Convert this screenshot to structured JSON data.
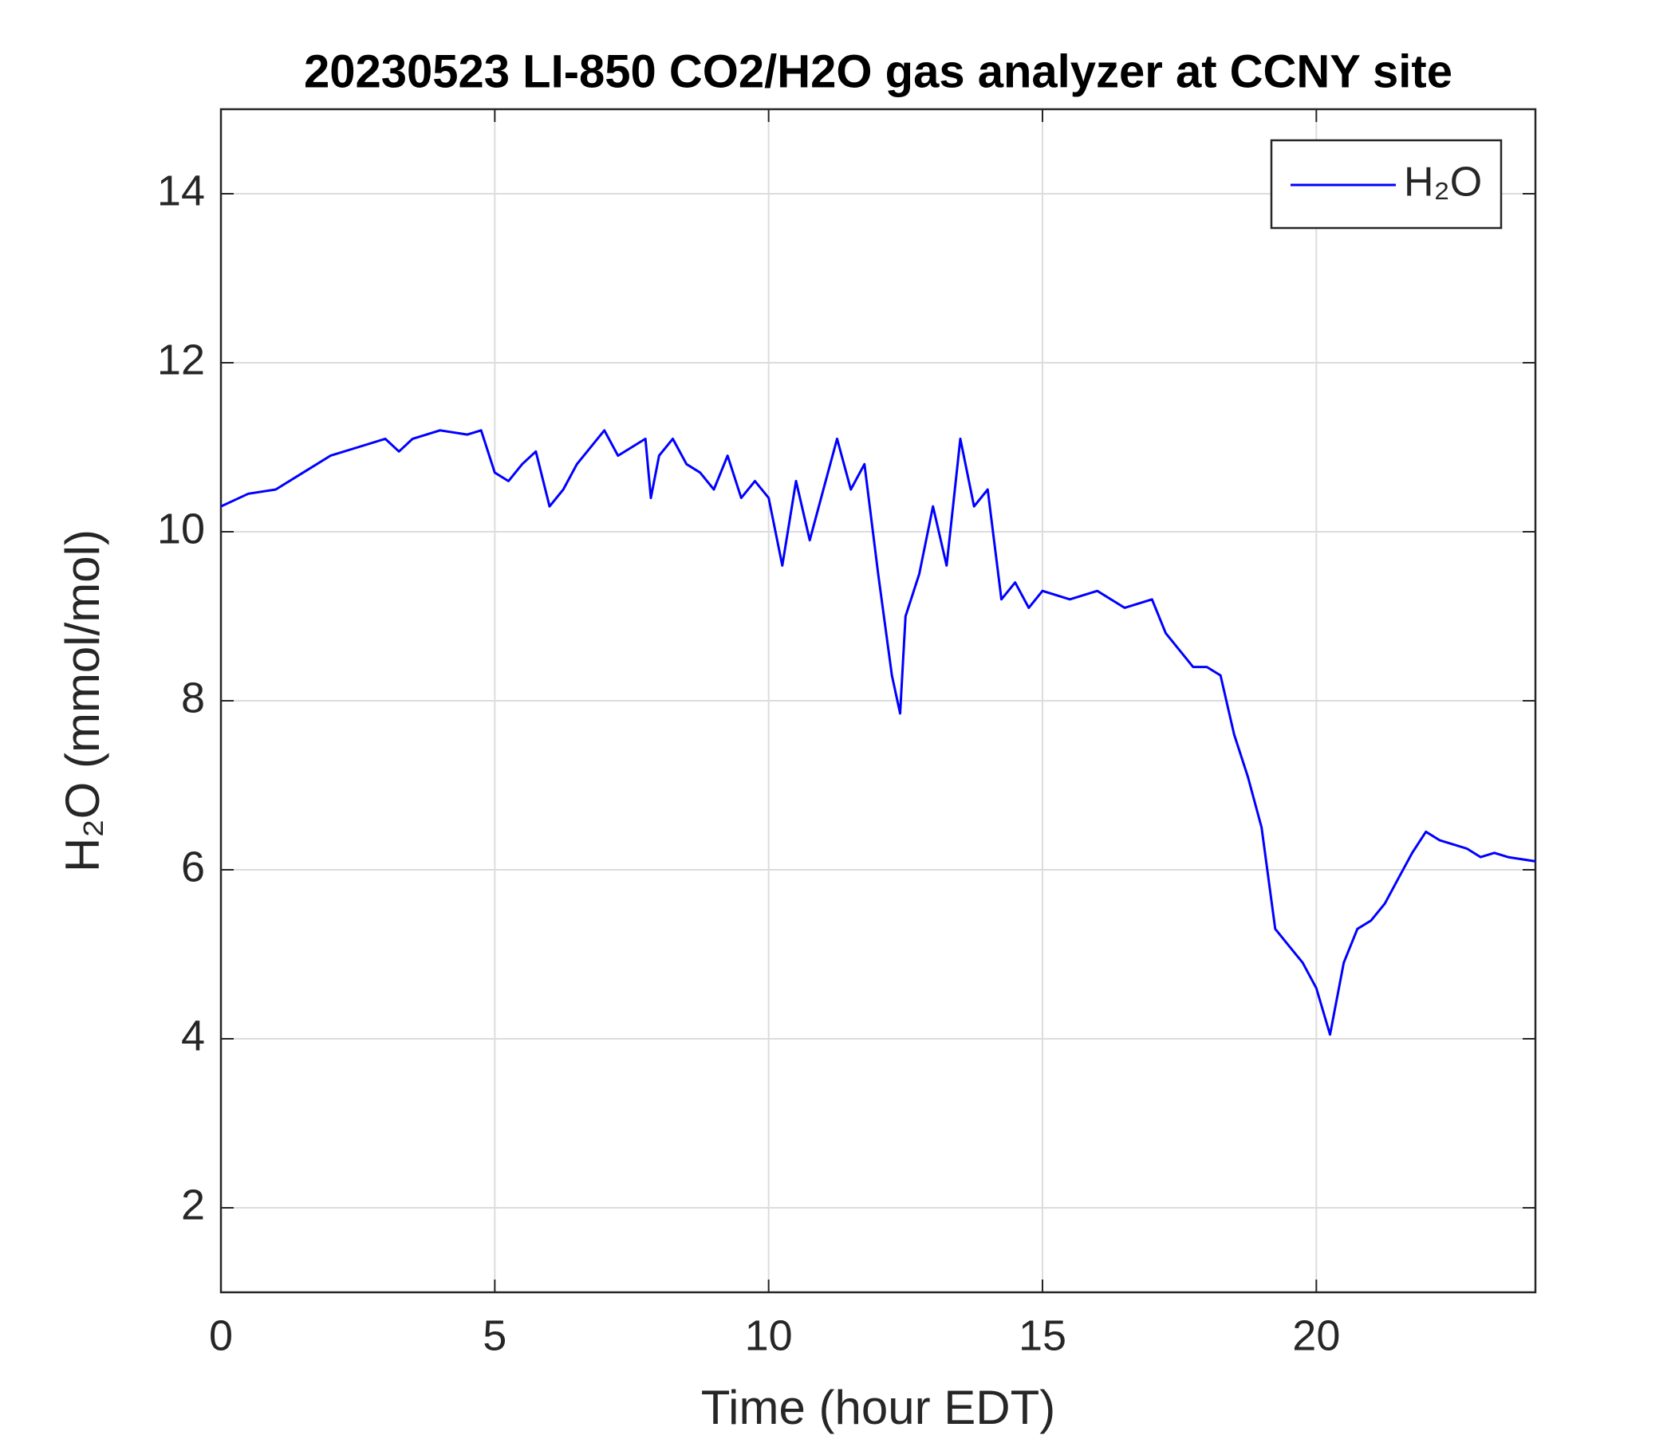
{
  "chart_data": {
    "type": "line",
    "title": "20230523 LI-850 CO2/H2O gas analyzer at CCNY site",
    "x_label": "Time (hour EDT)",
    "y_label": "H₂O (mmol/mol)",
    "x": [
      0,
      0.5,
      1,
      1.5,
      2,
      2.5,
      3,
      3.25,
      3.5,
      4,
      4.5,
      4.75,
      5,
      5.25,
      5.5,
      5.75,
      6,
      6.25,
      6.5,
      7,
      7.25,
      7.5,
      7.75,
      7.85,
      8,
      8.25,
      8.5,
      8.75,
      9,
      9.25,
      9.5,
      9.75,
      10,
      10.25,
      10.5,
      10.75,
      11,
      11.25,
      11.5,
      11.75,
      12,
      12.25,
      12.4,
      12.5,
      12.75,
      13,
      13.25,
      13.5,
      13.75,
      14,
      14.25,
      14.5,
      14.75,
      15,
      15.5,
      16,
      16.5,
      17,
      17.25,
      17.5,
      17.75,
      18,
      18.25,
      18.5,
      18.75,
      19,
      19.25,
      19.5,
      19.75,
      20,
      20.25,
      20.5,
      20.75,
      21,
      21.25,
      21.5,
      21.75,
      22,
      22.25,
      22.5,
      22.75,
      23,
      23.25,
      23.5,
      24
    ],
    "series": [
      {
        "name": "H₂O",
        "color": "#0000ff",
        "values": [
          10.3,
          10.45,
          10.5,
          10.7,
          10.9,
          11.0,
          11.1,
          10.95,
          11.1,
          11.2,
          11.15,
          11.2,
          10.7,
          10.6,
          10.8,
          10.95,
          10.3,
          10.5,
          10.8,
          11.2,
          10.9,
          11.0,
          11.1,
          10.4,
          10.9,
          11.1,
          10.8,
          10.7,
          10.5,
          10.9,
          10.4,
          10.6,
          10.4,
          9.6,
          10.6,
          9.9,
          10.5,
          11.1,
          10.5,
          10.8,
          9.5,
          8.3,
          7.85,
          9.0,
          9.5,
          10.3,
          9.6,
          11.1,
          10.3,
          10.5,
          9.2,
          9.4,
          9.1,
          9.3,
          9.2,
          9.3,
          9.1,
          9.2,
          8.8,
          8.6,
          8.4,
          8.4,
          8.3,
          7.6,
          7.1,
          6.5,
          5.3,
          5.1,
          4.9,
          4.6,
          4.05,
          4.9,
          5.3,
          5.4,
          5.6,
          5.9,
          6.2,
          6.45,
          6.35,
          6.3,
          6.25,
          6.15,
          6.2,
          6.15,
          6.1
        ]
      }
    ],
    "xlim": [
      0,
      24
    ],
    "xticks": [
      0,
      5,
      10,
      15,
      20
    ],
    "ylim": [
      1,
      15
    ],
    "yticks": [
      2,
      4,
      6,
      8,
      10,
      12,
      14
    ],
    "grid": true,
    "legend": "upper right"
  }
}
